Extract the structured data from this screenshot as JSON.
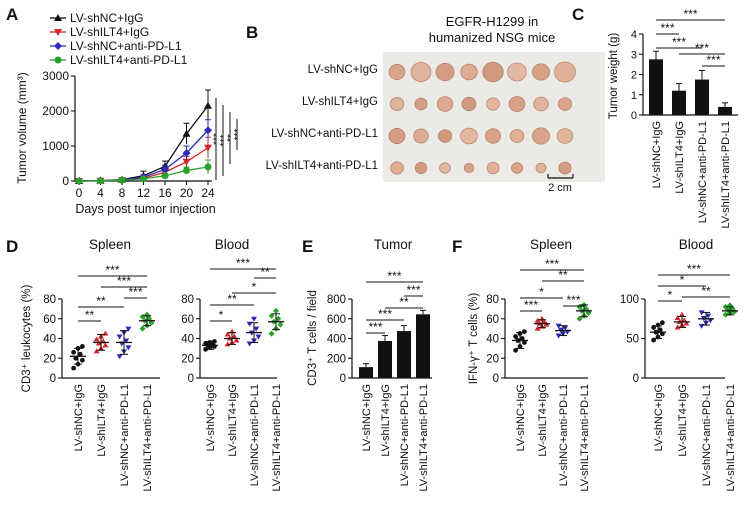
{
  "panel_labels": {
    "A": "A",
    "B": "B",
    "C": "C",
    "D": "D",
    "E": "E",
    "F": "F"
  },
  "colors": {
    "shNC_IgG": "#111111",
    "shILT4_IgG": "#d62728",
    "shNC_PDL1": "#2b2bb8",
    "shILT4_PDL1": "#2ca02c",
    "bar": "#111111",
    "axis": "#111111"
  },
  "groups": [
    "LV-shNC+IgG",
    "LV-shILT4+IgG",
    "LV-shNC+anti-PD-L1",
    "LV-shILT4+anti-PD-L1"
  ],
  "panelB": {
    "title_line1": "EGFR-H1299 in",
    "title_line2": "humanized NSG mice",
    "row_labels": [
      "LV-shNC+IgG",
      "LV-shILT4+IgG",
      "LV-shNC+anti-PD-L1",
      "LV-shILT4+anti-PD-L1"
    ],
    "scale_label": "2 cm"
  },
  "chart_data": [
    {
      "panel": "A",
      "type": "line",
      "xlabel": "Days post tumor injection",
      "ylabel": "Tumor volume (mm³)",
      "x": [
        0,
        4,
        8,
        12,
        16,
        20,
        24
      ],
      "ylim": [
        0,
        3000
      ],
      "yticks": [
        "0",
        "1000",
        "2000",
        "3000"
      ],
      "series": [
        {
          "name": "LV-shNC+IgG",
          "marker": "triangle-up",
          "values": [
            0,
            10,
            40,
            150,
            420,
            1350,
            2150
          ],
          "err": [
            0,
            5,
            40,
            130,
            150,
            300,
            450
          ]
        },
        {
          "name": "LV-shILT4+IgG",
          "marker": "triangle-down",
          "values": [
            0,
            8,
            25,
            80,
            250,
            550,
            950
          ],
          "err": [
            0,
            5,
            25,
            60,
            100,
            150,
            300
          ]
        },
        {
          "name": "LV-shNC+anti-PD-L1",
          "marker": "diamond",
          "values": [
            0,
            8,
            30,
            110,
            330,
            800,
            1450
          ],
          "err": [
            0,
            5,
            25,
            70,
            120,
            200,
            300
          ]
        },
        {
          "name": "LV-shILT4+anti-PD-L1",
          "marker": "circle",
          "values": [
            0,
            6,
            20,
            60,
            150,
            300,
            400
          ],
          "err": [
            0,
            4,
            15,
            40,
            60,
            100,
            200
          ]
        }
      ],
      "sig": [
        "***",
        "***",
        "**",
        "***"
      ]
    },
    {
      "panel": "C",
      "type": "bar",
      "ylabel": "Tumor weight (g)",
      "ylim": [
        0,
        4
      ],
      "yticks": [
        "0",
        "1",
        "2",
        "3",
        "4"
      ],
      "categories": [
        "LV-shNC+IgG",
        "LV-shILT4+IgG",
        "LV-shNC+anti-PD-L1",
        "LV-shILT4+anti-PD-L1"
      ],
      "values": [
        2.75,
        1.2,
        1.75,
        0.4
      ],
      "err": [
        0.4,
        0.35,
        0.45,
        0.2
      ],
      "sig": [
        "***",
        "***",
        "***",
        "***",
        "***"
      ]
    },
    {
      "panel": "D1",
      "type": "scatter",
      "title": "Spleen",
      "ylabel": "CD3⁺ leukocytes (%)",
      "ylim": [
        0,
        80
      ],
      "yticks": [
        "0",
        "20",
        "40",
        "60",
        "80"
      ],
      "categories": [
        "LV-shNC+IgG",
        "LV-shILT4+IgG",
        "LV-shNC+anti-PD-L1",
        "LV-shILT4+anti-PD-L1"
      ],
      "means": [
        22,
        36,
        36,
        58
      ],
      "err": [
        8,
        8,
        12,
        5
      ],
      "points": [
        [
          10,
          14,
          18,
          20,
          24,
          26,
          30,
          32
        ],
        [
          27,
          30,
          33,
          35,
          37,
          39,
          42,
          45
        ],
        [
          22,
          27,
          31,
          35,
          38,
          42,
          46,
          50
        ],
        [
          50,
          53,
          56,
          58,
          60,
          62,
          64
        ]
      ],
      "sig": [
        "**",
        "**",
        "***",
        "***",
        "***"
      ]
    },
    {
      "panel": "D2",
      "type": "scatter",
      "title": "Blood",
      "ylim": [
        0,
        80
      ],
      "yticks": [
        "0",
        "20",
        "40",
        "60",
        "80"
      ],
      "categories": [
        "LV-shNC+IgG",
        "LV-shILT4+IgG",
        "LV-shNC+anti-PD-L1",
        "LV-shILT4+anti-PD-L1"
      ],
      "means": [
        33,
        40,
        46,
        57
      ],
      "err": [
        4,
        6,
        10,
        8
      ],
      "points": [
        [
          29,
          31,
          32,
          33,
          34,
          35,
          36,
          37
        ],
        [
          34,
          36,
          38,
          40,
          42,
          44,
          47
        ],
        [
          35,
          38,
          42,
          46,
          50,
          55,
          60
        ],
        [
          45,
          50,
          54,
          57,
          60,
          63,
          68
        ]
      ],
      "sig": [
        "*",
        "**",
        "*",
        "**",
        "***"
      ]
    },
    {
      "panel": "E",
      "type": "bar",
      "title": "Tumor",
      "ylabel": "CD3⁺ T cells / field",
      "ylim": [
        0,
        800
      ],
      "yticks": [
        "0",
        "200",
        "400",
        "600",
        "800"
      ],
      "categories": [
        "LV-shNC+IgG",
        "LV-shILT4+IgG",
        "LV-shNC+anti-PD-L1",
        "LV-shILT4+anti-PD-L1"
      ],
      "values": [
        110,
        375,
        475,
        645
      ],
      "err": [
        35,
        55,
        55,
        40
      ],
      "sig": [
        "***",
        "***",
        "**",
        "***",
        "***"
      ]
    },
    {
      "panel": "F1",
      "type": "scatter",
      "title": "Spleen",
      "ylabel": "IFN-γ⁺ T cells (%)",
      "ylim": [
        0,
        80
      ],
      "yticks": [
        "0",
        "20",
        "40",
        "60",
        "80"
      ],
      "categories": [
        "LV-shNC+IgG",
        "LV-shILT4+IgG",
        "LV-shNC+anti-PD-L1",
        "LV-shILT4+anti-PD-L1"
      ],
      "means": [
        38,
        55,
        48,
        68
      ],
      "err": [
        8,
        4,
        5,
        6
      ],
      "points": [
        [
          28,
          32,
          36,
          38,
          40,
          42,
          45,
          47
        ],
        [
          50,
          52,
          54,
          55,
          57,
          58,
          60
        ],
        [
          43,
          45,
          47,
          49,
          51,
          53
        ],
        [
          60,
          63,
          66,
          68,
          70,
          72,
          74
        ]
      ],
      "sig": [
        "***",
        "*",
        "***",
        "**",
        "***"
      ]
    },
    {
      "panel": "F2",
      "type": "scatter",
      "title": "Blood",
      "ylim": [
        0,
        100
      ],
      "yticks": [
        "0",
        "50",
        "100"
      ],
      "categories": [
        "LV-shNC+IgG",
        "LV-shILT4+IgG",
        "LV-shNC+anti-PD-L1",
        "LV-shILT4+anti-PD-L1"
      ],
      "means": [
        58,
        71,
        75,
        85
      ],
      "err": [
        8,
        7,
        8,
        5
      ],
      "points": [
        [
          48,
          52,
          56,
          58,
          61,
          64,
          67,
          70
        ],
        [
          64,
          67,
          69,
          71,
          73,
          76,
          80
        ],
        [
          66,
          70,
          73,
          76,
          79,
          83
        ],
        [
          80,
          82,
          84,
          86,
          88,
          90,
          92
        ]
      ],
      "sig": [
        "*",
        "*",
        "**",
        "***"
      ]
    }
  ]
}
